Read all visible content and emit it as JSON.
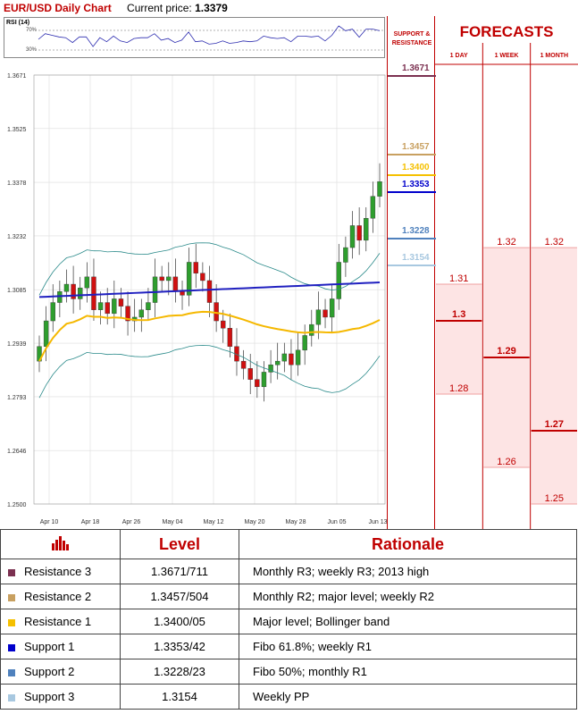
{
  "header": {
    "title": "EUR/USD Daily Chart",
    "price_label": "Current price:",
    "price_value": "1.3379"
  },
  "rsi": {
    "label": "RSI (14)",
    "level_high": "70%",
    "level_low": "30%"
  },
  "side_panel": {
    "title_line1": "SUPPORT &",
    "title_line2": "RESISTANCE"
  },
  "forecasts": {
    "title": "FORECASTS",
    "columns": [
      "1 DAY",
      "1 WEEK",
      "1 MONTH"
    ],
    "day": {
      "high": "1.31",
      "mid": "1.3",
      "low": "1.28"
    },
    "week": {
      "high": "1.32",
      "mid": "1.29",
      "low": "1.26"
    },
    "month": {
      "high": "1.32",
      "mid": "1.27",
      "low": "1.25"
    }
  },
  "colors": {
    "r3": "#7b3050",
    "r2": "#c8a060",
    "r1": "#f5c000",
    "s1": "#0000cc",
    "s2": "#4f81bd",
    "s3": "#a8c8e0",
    "accent": "#c00000"
  },
  "chart_data": {
    "type": "candlestick",
    "title": "EUR/USD Daily Chart",
    "y_ticks": [
      "1.3671",
      "1.3525",
      "1.3378",
      "1.3232",
      "1.3085",
      "1.2939",
      "1.2793",
      "1.2646",
      "1.2500"
    ],
    "ylim": [
      1.25,
      1.3671
    ],
    "x_ticks": [
      "Apr 10",
      "Apr 18",
      "Apr 26",
      "May 04",
      "May 12",
      "May 20",
      "May 28",
      "Jun 05",
      "Jun 13"
    ],
    "level_labels": [
      "1.3671",
      "1.3457",
      "1.3400",
      "1.3353",
      "1.3228",
      "1.3154"
    ],
    "levels": [
      1.3671,
      1.3457,
      1.34,
      1.3353,
      1.3228,
      1.3154
    ],
    "close_series": [
      1.293,
      1.3,
      1.305,
      1.308,
      1.31,
      1.306,
      1.309,
      1.312,
      1.303,
      1.305,
      1.302,
      1.306,
      1.304,
      1.3,
      1.301,
      1.303,
      1.305,
      1.312,
      1.311,
      1.312,
      1.308,
      1.307,
      1.316,
      1.313,
      1.311,
      1.305,
      1.3,
      1.298,
      1.293,
      1.289,
      1.287,
      1.284,
      1.282,
      1.286,
      1.288,
      1.289,
      1.291,
      1.288,
      1.292,
      1.296,
      1.299,
      1.303,
      1.301,
      1.306,
      1.316,
      1.32,
      1.326,
      1.322,
      1.328,
      1.334,
      1.338
    ],
    "grid": true
  },
  "table": {
    "headers": {
      "level": "Level",
      "rationale": "Rationale"
    },
    "rows": [
      {
        "name": "Resistance 3",
        "level": "1.3671/711",
        "rationale": "Monthly R3; weekly R3; 2013 high",
        "color": "#7b3050"
      },
      {
        "name": "Resistance 2",
        "level": "1.3457/504",
        "rationale": "Monthly R2; major level; weekly R2",
        "color": "#c8a060"
      },
      {
        "name": "Resistance 1",
        "level": "1.3400/05",
        "rationale": "Major level; Bollinger band",
        "color": "#f5c000"
      },
      {
        "name": "Support 1",
        "level": "1.3353/42",
        "rationale": "Fibo 61.8%; weekly R1",
        "color": "#0000cc"
      },
      {
        "name": "Support 2",
        "level": "1.3228/23",
        "rationale": "Fibo 50%; monthly R1",
        "color": "#4f81bd"
      },
      {
        "name": "Support 3",
        "level": "1.3154",
        "rationale": "Weekly PP",
        "color": "#a8c8e0"
      }
    ]
  }
}
